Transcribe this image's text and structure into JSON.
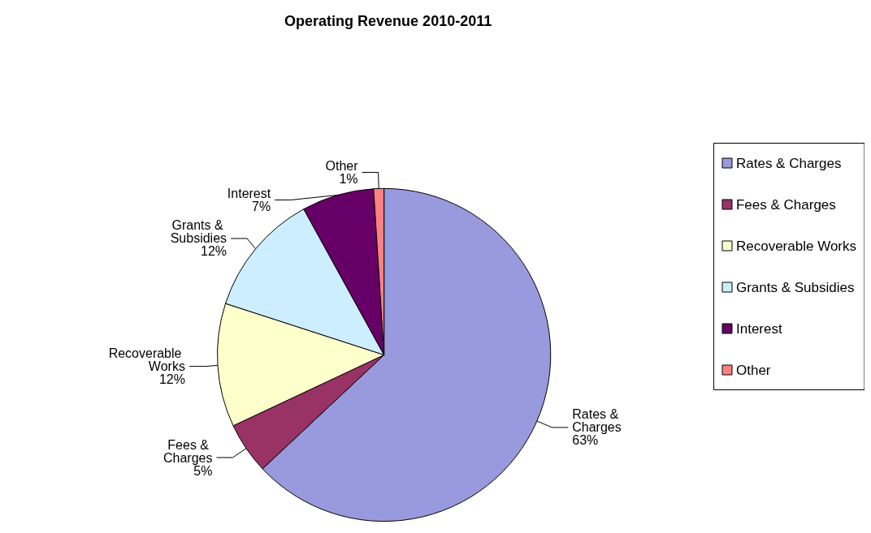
{
  "chart_data": {
    "type": "pie",
    "title": "Operating Revenue 2010-2011",
    "categories": [
      "Rates & Charges",
      "Fees & Charges",
      "Recoverable Works",
      "Grants & Subsidies",
      "Interest",
      "Other"
    ],
    "values": [
      63,
      5,
      12,
      12,
      7,
      1
    ],
    "colors": [
      "#9999dd",
      "#993366",
      "#ffffcc",
      "#cceeff",
      "#660066",
      "#ff8080"
    ],
    "value_labels": [
      "63%",
      "5%",
      "12%",
      "12%",
      "7%",
      "1%"
    ],
    "legend": "right"
  }
}
